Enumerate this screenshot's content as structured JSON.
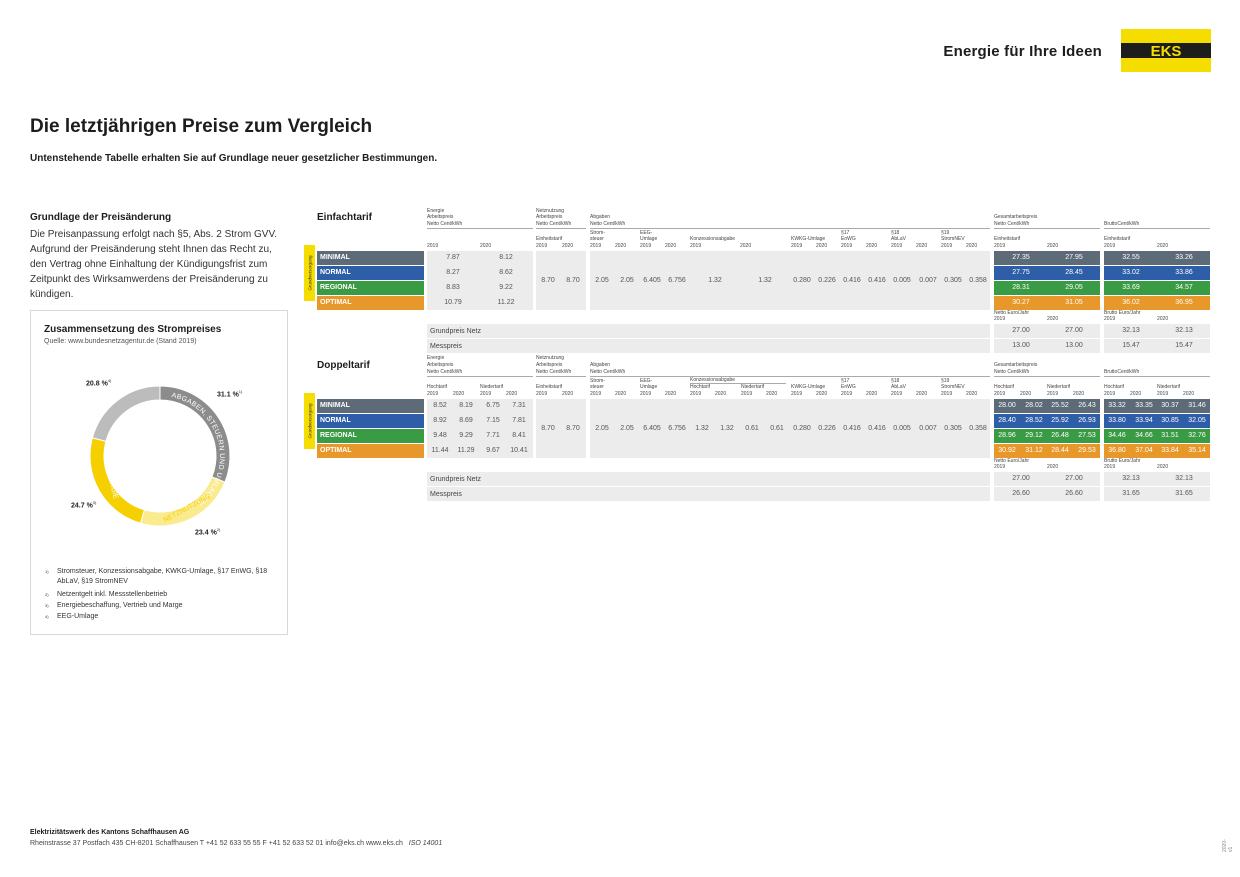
{
  "header": {
    "tagline": "Energie für Ihre Ideen",
    "logo_text": "EKS",
    "logo_color": "#f5dd00"
  },
  "title": "Die letztjährigen Preise zum Vergleich",
  "subtitle": "Untenstehende Tabelle erhalten Sie auf Grundlage neuer gesetzlicher Bestimmungen.",
  "grundlage": {
    "heading": "Grundlage der Preisänderung",
    "text": "Die Preisanpassung erfolgt nach §5, Abs. 2 Strom GVV. Aufgrund der Preisänderung steht Ihnen das Recht zu, den Vertrag ohne Einhaltung der Kündigungsfrist zum Zeitpunkt des Wirksamwerdens der Preisänderung zu kündigen."
  },
  "composition": {
    "title": "Zusammensetzung des Strompreises",
    "source": "Quelle: www.bundesnetzagentur.de (Stand 2019)",
    "segments": [
      {
        "name": "ABGABEN, STEUERN UND UMLAGEN",
        "percent_label": "31.1 %",
        "sup": "1)",
        "value": 31.1,
        "color": "#8c8c8c"
      },
      {
        "name": "NETZNUTZUNG",
        "percent_label": "23.4 %",
        "sup": "2)",
        "value": 23.4,
        "color": "#fbeb8f"
      },
      {
        "name": "ENERGIE",
        "percent_label": "24.7 %",
        "sup": "3)",
        "value": 24.7,
        "color": "#f5cf00"
      },
      {
        "name": "",
        "percent_label": "20.8 %",
        "sup": "4)",
        "value": 20.8,
        "color": "#bcbcbc"
      }
    ],
    "footnotes": [
      {
        "n": "1)",
        "text": "Stromsteuer, Konzessionsabgabe, KWKG-Umlage, §17 EnWG, §18 AbLaV, §19 StromNEV"
      },
      {
        "n": "2)",
        "text": "Netzentgelt inkl. Messstellenbetrieb"
      },
      {
        "n": "3)",
        "text": "Energiebeschaffung, Vertrieb und Marge"
      },
      {
        "n": "4)",
        "text": "EEG-Umlage"
      }
    ]
  },
  "tarif_colors": {
    "MINIMAL": "#5d6b78",
    "NORMAL": "#2e5ea7",
    "REGIONAL": "#3a9b45",
    "OPTIMAL": "#e8972a"
  },
  "grundversorgung": "Grundversorgung",
  "einfach": {
    "title": "Einfachtarif",
    "h": {
      "energie": "Energie",
      "arbeitspreis": "Arbeitspreis",
      "nettoct": "Netto Cent/kWh",
      "netz": "Netznutzung",
      "netzap": "Arbeitspreis",
      "netzct": "Netto Cent/kWh",
      "abg": "Abgaben",
      "abgct": "Netto Cent/kWh",
      "einheit": "Einheitstarif",
      "strom": "Strom-",
      "steuer": "steuer",
      "eeg": "EEG-",
      "umlage": "Umlage",
      "konz": "Konzessionsabgabe",
      "kwkg": "KWKG-Umlage",
      "p17": "§17",
      "enwg": "EnWG",
      "p18": "§18",
      "ablav": "AbLaV",
      "p19": "§19",
      "snev": "StromNEV",
      "ges": "Gesamtarbeitspreis",
      "gesct": "Netto Cent/kWh",
      "eint": "Einheitstarif",
      "brutto": "BruttoCent/kWh",
      "bein": "Einheitstarif",
      "y19": "2019",
      "y20": "2020"
    },
    "rows": [
      {
        "name": "MINIMAL",
        "e19": "7.87",
        "e20": "8.12",
        "n19": "27.35",
        "n20": "27.95",
        "b19": "32.55",
        "b20": "33.26"
      },
      {
        "name": "NORMAL",
        "e19": "8.27",
        "e20": "8.62",
        "n19": "27.75",
        "n20": "28.45",
        "b19": "33.02",
        "b20": "33.86"
      },
      {
        "name": "REGIONAL",
        "e19": "8.83",
        "e20": "9.22",
        "n19": "28.31",
        "n20": "29.05",
        "b19": "33.69",
        "b20": "34.57"
      },
      {
        "name": "OPTIMAL",
        "e19": "10.79",
        "e20": "11.22",
        "n19": "30.27",
        "n20": "31.05",
        "b19": "36.02",
        "b20": "36.95"
      }
    ],
    "shared": {
      "netz19": "8.70",
      "netz20": "8.70",
      "st19": "2.05",
      "st20": "2.05",
      "eeg19": "6.405",
      "eeg20": "6.756",
      "konz19": "1.32",
      "konz20": "1.32",
      "kwkg19": "0.280",
      "kwkg20": "0.226",
      "e17_19": "0.416",
      "e17_20": "0.416",
      "a18_19": "0.005",
      "a18_20": "0.007",
      "s19_19": "0.305",
      "s19_20": "0.358"
    },
    "fees": {
      "netto_ej": "Netto Euro/Jahr",
      "brutto_ej": "Brutto Euro/Jahr",
      "y19": "2019",
      "y20": "2020",
      "rows": [
        {
          "label": "Grundpreis Netz",
          "n19": "27.00",
          "n20": "27.00",
          "b19": "32.13",
          "b20": "32.13"
        },
        {
          "label": "Messpreis",
          "n19": "13.00",
          "n20": "13.00",
          "b19": "15.47",
          "b20": "15.47"
        }
      ]
    }
  },
  "doppel": {
    "title": "Doppeltarif",
    "h": {
      "energie": "Energie",
      "arbeitspreis": "Arbeitspreis",
      "nettoct": "Netto Cent/kWh",
      "netz": "Netznutzung",
      "netzap": "Arbeitspreis",
      "netzct": "Netto Cent/kWh",
      "abg": "Abgaben",
      "abgct": "Netto Cent/kWh",
      "hoch": "Hochtarif",
      "nieder": "Niedertarif",
      "einheit": "Einheitstarif",
      "strom": "Strom-",
      "steuer": "steuer",
      "eeg": "EEG-",
      "umlage": "Umlage",
      "konz": "Konzessionsabgabe",
      "konzh": "Hochtarif",
      "konzn": "Niedertarif",
      "kwkg": "KWKG-Umlage",
      "p17": "§17",
      "enwg": "EnWG",
      "p18": "§18",
      "ablav": "AbLaV",
      "p19": "§19",
      "snev": "StromNEV",
      "ges": "Gesamtarbeitspreis",
      "gesct": "Netto Cent/kWh",
      "gh": "Hochtarif",
      "gn": "Niedertarif",
      "brutto": "BruttoCent/kWh",
      "bh": "Hochtarif",
      "bn": "Niedertarif",
      "y19": "2019",
      "y20": "2020"
    },
    "rows": [
      {
        "name": "MINIMAL",
        "h19": "8.52",
        "h20": "8.19",
        "n19": "6.75",
        "n20": "7.31",
        "gh19": "28.00",
        "gh20": "28.02",
        "gn19": "25.52",
        "gn20": "26.43",
        "bh19": "33.32",
        "bh20": "33.35",
        "bn19": "30.37",
        "bn20": "31.46"
      },
      {
        "name": "NORMAL",
        "h19": "8.92",
        "h20": "8.69",
        "n19": "7.15",
        "n20": "7.81",
        "gh19": "28.40",
        "gh20": "28.52",
        "gn19": "25.92",
        "gn20": "26.93",
        "bh19": "33.80",
        "bh20": "33.94",
        "bn19": "30.85",
        "bn20": "32.05"
      },
      {
        "name": "REGIONAL",
        "h19": "9.48",
        "h20": "9.29",
        "n19": "7.71",
        "n20": "8.41",
        "gh19": "28.96",
        "gh20": "29.12",
        "gn19": "26.48",
        "gn20": "27.53",
        "bh19": "34.46",
        "bh20": "34.66",
        "bn19": "31.51",
        "bn20": "32.76"
      },
      {
        "name": "OPTIMAL",
        "h19": "11.44",
        "h20": "11.29",
        "n19": "9.67",
        "n20": "10.41",
        "gh19": "30.92",
        "gh20": "31.12",
        "gn19": "28.44",
        "gn20": "29.53",
        "bh19": "36.80",
        "bh20": "37.04",
        "bn19": "33.84",
        "bn20": "35.14"
      }
    ],
    "shared": {
      "netz19": "8.70",
      "netz20": "8.70",
      "st19": "2.05",
      "st20": "2.05",
      "eeg19": "6.405",
      "eeg20": "6.756",
      "kh19": "1.32",
      "kh20": "1.32",
      "kn19": "0.61",
      "kn20": "0.61",
      "kwkg19": "0.280",
      "kwkg20": "0.226",
      "e17_19": "0.416",
      "e17_20": "0.416",
      "a18_19": "0.005",
      "a18_20": "0.007",
      "s19_19": "0.305",
      "s19_20": "0.358"
    },
    "fees": {
      "netto_ej": "Netto Euro/Jahr",
      "brutto_ej": "Brutto Euro/Jahr",
      "y19": "2019",
      "y20": "2020",
      "rows": [
        {
          "label": "Grundpreis Netz",
          "n19": "27.00",
          "n20": "27.00",
          "b19": "32.13",
          "b20": "32.13"
        },
        {
          "label": "Messpreis",
          "n19": "26.60",
          "n20": "26.60",
          "b19": "31.65",
          "b20": "31.65"
        }
      ]
    }
  },
  "footer": {
    "company": "Elektrizitätswerk des Kantons Schaffhausen AG",
    "address": "Rheinstrasse 37   Postfach 435   CH-8201 Schaffhausen   T +41 52 633 55 55   F +41 52 633 52 01   info@eks.ch   www.eks.ch",
    "iso": "ISO 14001",
    "version": "2020-v1"
  }
}
